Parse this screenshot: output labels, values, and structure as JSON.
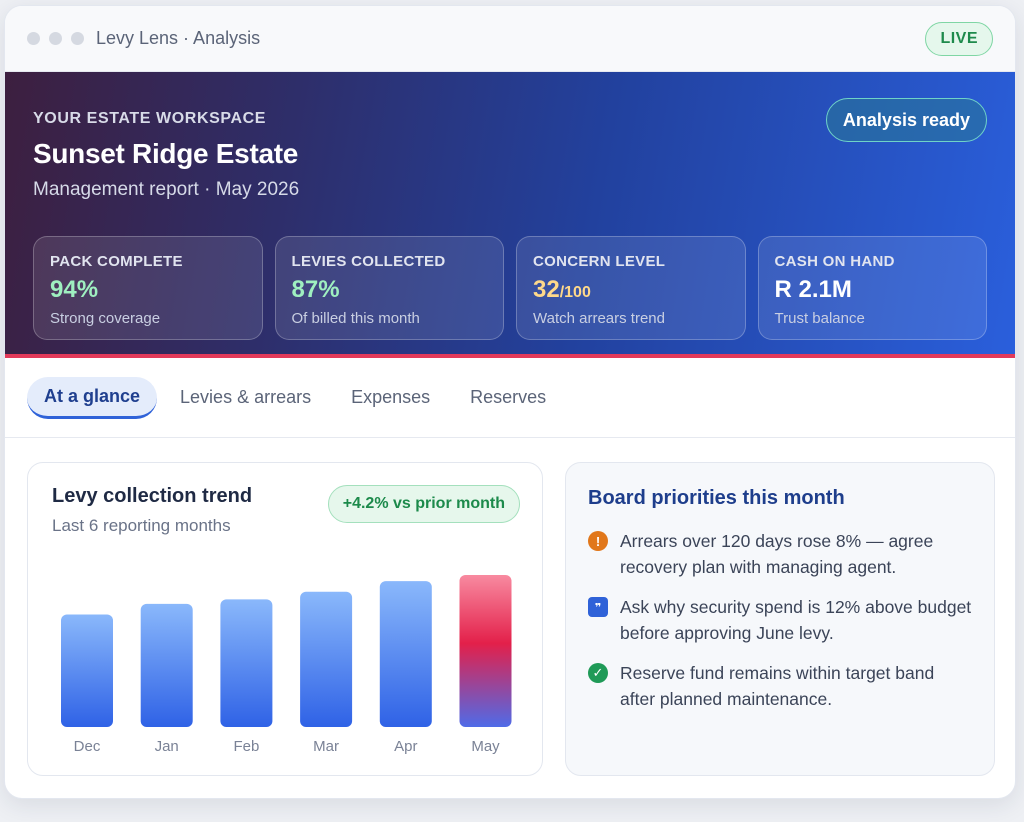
{
  "window": {
    "title": "Levy Lens · Analysis",
    "live_badge": "LIVE"
  },
  "hero": {
    "eyebrow": "YOUR ESTATE WORKSPACE",
    "estate_name": "Sunset Ridge Estate",
    "report_subtitle": "Management report · May 2026",
    "status_button": "Analysis ready",
    "stats": [
      {
        "label": "PACK COMPLETE",
        "value": "94%",
        "unit": "",
        "note": "Strong coverage",
        "value_color": "#9ff0c0"
      },
      {
        "label": "LEVIES COLLECTED",
        "value": "87%",
        "unit": "",
        "note": "Of billed this month",
        "value_color": "#9ff0c0"
      },
      {
        "label": "CONCERN LEVEL",
        "value": "32",
        "unit": "/100",
        "note": "Watch arrears trend",
        "value_color": "#ffd98a"
      },
      {
        "label": "CASH ON HAND",
        "value": "R 2.1M",
        "unit": "",
        "note": "Trust balance",
        "value_color": "#ffffff"
      }
    ]
  },
  "tabs": [
    {
      "label": "At a glance",
      "active": true
    },
    {
      "label": "Levies & arrears",
      "active": false
    },
    {
      "label": "Expenses",
      "active": false
    },
    {
      "label": "Reserves",
      "active": false
    }
  ],
  "trend": {
    "title": "Levy collection trend",
    "subtitle": "Last 6 reporting months",
    "delta_badge": "+4.2% vs prior month"
  },
  "chart_data": {
    "type": "bar",
    "categories": [
      "Dec",
      "Jan",
      "Feb",
      "Mar",
      "Apr",
      "May"
    ],
    "values": [
      74,
      81,
      84,
      89,
      96,
      100
    ],
    "highlight_index": 5,
    "title": "Levy collection trend",
    "xlabel": "",
    "ylabel": "",
    "ylim": [
      0,
      100
    ],
    "grid": false,
    "colors": {
      "bar_top": "#8ab8fb",
      "bar_bottom": "#2f62e6",
      "highlight_top": "#f88aa0",
      "highlight_mid": "#e3204a",
      "highlight_bottom": "#4f6be8"
    }
  },
  "priorities": {
    "title": "Board priorities this month",
    "items": [
      {
        "icon": "warning-icon",
        "type": "warn",
        "glyph": "!",
        "text": "Arrears over 120 days rose 8% — agree recovery plan with managing agent."
      },
      {
        "icon": "chat-icon",
        "type": "chat",
        "glyph": "❞",
        "text": "Ask why security spend is 12% above budget before approving June levy."
      },
      {
        "icon": "check-icon",
        "type": "ok",
        "glyph": "✓",
        "text": "Reserve fund remains within target band after planned maintenance."
      }
    ]
  }
}
